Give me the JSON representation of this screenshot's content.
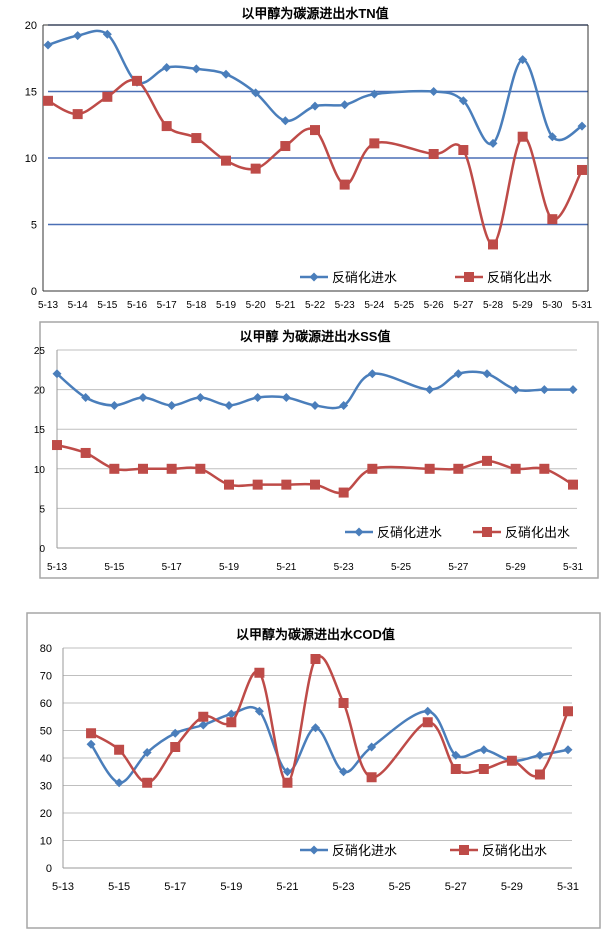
{
  "colors": {
    "inlet": "#4a7ebb",
    "outlet": "#be4b48",
    "grid_tn": "#4a6fb5",
    "grid": "#bfbfbf",
    "frame": "#a6a6a6"
  },
  "chart_data": [
    {
      "type": "line",
      "title": "以甲醇为碳源进出水TN值",
      "ylim": [
        0,
        20
      ],
      "yticks": [
        0,
        5,
        10,
        15,
        20
      ],
      "grid": true,
      "legend": "bottom-right",
      "categories": [
        "5-13",
        "5-14",
        "5-15",
        "5-16",
        "5-17",
        "5-18",
        "5-19",
        "5-20",
        "5-21",
        "5-22",
        "5-23",
        "5-24",
        "5-25",
        "5-26",
        "5-27",
        "5-28",
        "5-29",
        "5-30",
        "5-31"
      ],
      "xticklabels": [
        "5-13",
        "5-14",
        "5-15",
        "5-16",
        "5-17",
        "5-18",
        "5-19",
        "5-20",
        "5-21",
        "5-22",
        "5-23",
        "5-24",
        "5-25",
        "5-26",
        "5-27",
        "5-28",
        "5-29",
        "5-30",
        "5-31"
      ],
      "series": [
        {
          "name": "反硝化进水",
          "marker": "diamond",
          "values": [
            18.5,
            19.2,
            19.3,
            15.7,
            16.8,
            16.7,
            16.3,
            14.9,
            12.8,
            13.9,
            14.0,
            14.8,
            null,
            15.0,
            14.3,
            11.1,
            17.4,
            11.6,
            12.4
          ]
        },
        {
          "name": "反硝化出水",
          "marker": "square",
          "values": [
            14.3,
            13.3,
            14.6,
            15.8,
            12.4,
            11.5,
            9.8,
            9.2,
            10.9,
            12.1,
            8.0,
            11.1,
            null,
            10.3,
            10.6,
            3.5,
            11.6,
            5.4,
            9.1
          ]
        }
      ]
    },
    {
      "type": "line",
      "title": "以甲醇 为碳源进出水SS值",
      "ylim": [
        0,
        25
      ],
      "yticks": [
        0,
        5,
        10,
        15,
        20,
        25
      ],
      "grid": true,
      "legend": "bottom-right",
      "categories": [
        "5-13",
        "5-14",
        "5-15",
        "5-16",
        "5-17",
        "5-18",
        "5-19",
        "5-20",
        "5-21",
        "5-22",
        "5-23",
        "5-24",
        "5-25",
        "5-26",
        "5-27",
        "5-28",
        "5-29",
        "5-30",
        "5-31"
      ],
      "xticklabels": [
        "5-13",
        "5-15",
        "5-17",
        "5-19",
        "5-21",
        "5-23",
        "5-25",
        "5-27",
        "5-29",
        "5-31"
      ],
      "series": [
        {
          "name": "反硝化进水",
          "marker": "diamond",
          "values": [
            22,
            19,
            18,
            19,
            18,
            19,
            18,
            19,
            19,
            18,
            18,
            22,
            null,
            20,
            22,
            22,
            20,
            20,
            20
          ]
        },
        {
          "name": "反硝化出水",
          "marker": "square",
          "values": [
            13,
            12,
            10,
            10,
            10,
            10,
            8,
            8,
            8,
            8,
            7,
            10,
            null,
            10,
            10,
            11,
            10,
            10,
            8
          ]
        }
      ]
    },
    {
      "type": "line",
      "title": "以甲醇为碳源进出水COD值",
      "ylim": [
        0,
        80
      ],
      "yticks": [
        0,
        10,
        20,
        30,
        40,
        50,
        60,
        70,
        80
      ],
      "grid": true,
      "legend": "bottom-right",
      "categories": [
        "5-13",
        "5-14",
        "5-15",
        "5-16",
        "5-17",
        "5-18",
        "5-19",
        "5-20",
        "5-21",
        "5-22",
        "5-23",
        "5-24",
        "5-25",
        "5-26",
        "5-27",
        "5-28",
        "5-29",
        "5-30",
        "5-31"
      ],
      "xticklabels": [
        "5-13",
        "5-15",
        "5-17",
        "5-19",
        "5-21",
        "5-23",
        "5-25",
        "5-27",
        "5-29",
        "5-31"
      ],
      "series": [
        {
          "name": "反硝化进水",
          "marker": "diamond",
          "values": [
            null,
            45,
            31,
            42,
            49,
            52,
            56,
            57,
            35,
            51,
            35,
            44,
            null,
            57,
            41,
            43,
            39,
            41,
            43
          ]
        },
        {
          "name": "反硝化出水",
          "marker": "square",
          "values": [
            null,
            49,
            43,
            31,
            44,
            55,
            53,
            71,
            31,
            76,
            60,
            33,
            null,
            53,
            36,
            36,
            39,
            34,
            57
          ]
        }
      ]
    }
  ]
}
